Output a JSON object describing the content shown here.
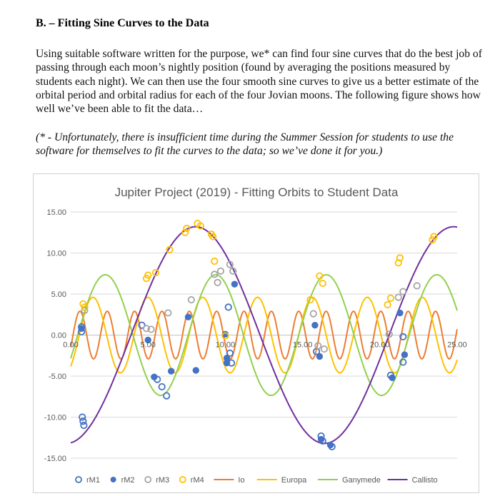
{
  "document": {
    "heading": "B. – Fitting Sine Curves to the Data",
    "paragraph": "Using suitable software written for the purpose, we* can find four sine curves that do the best job of passing through each moon’s nightly position (found by averaging the positions measured by students each night). We can then use the four smooth sine curves to give us a better estimate of the orbital period and orbital radius for each of the four Jovian moons. The following figure shows how well we’ve been able to fit the data…",
    "footnote": "(* - Unfortunately, there is insufficient time during the Summer Session for students to use the software for themselves to fit the curves to the data; so we’ve done it for you.)"
  },
  "chart_data": {
    "type": "scatter",
    "title": "Jupiter Project (2019) - Fitting Orbits to Student Data",
    "xlim": [
      0,
      25
    ],
    "ylim": [
      -15,
      15
    ],
    "x_ticks": [
      "0.00",
      "5.00",
      "10.00",
      "15.00",
      "20.00",
      "25.00"
    ],
    "y_ticks": [
      "15.00",
      "10.00",
      "5.00",
      "0.00",
      "-5.00",
      "-10.00",
      "-15.00"
    ],
    "grid": "horizontal",
    "legend": "bottom",
    "curves": [
      {
        "name": "Io",
        "color": "#ed7d31",
        "amplitude": 2.9,
        "period": 1.77,
        "phase_zero_x": 0.15
      },
      {
        "name": "Europa",
        "color": "#ffc000",
        "amplitude": 4.6,
        "period": 3.55,
        "phase_zero_x": 0.55
      },
      {
        "name": "Ganymede",
        "color": "#92d050",
        "amplitude": 7.35,
        "period": 7.15,
        "phase_zero_x": 0.45
      },
      {
        "name": "Callisto",
        "color": "#7030a0",
        "amplitude": 13.2,
        "period": 16.7,
        "phase_zero_x": 3.9
      }
    ],
    "series": [
      {
        "name": "rM1",
        "style": "open",
        "color": "#4472c4",
        "points": [
          [
            0.7,
            1.0
          ],
          [
            0.7,
            0.4
          ],
          [
            0.75,
            -10.0
          ],
          [
            0.8,
            -10.5
          ],
          [
            0.85,
            -11.0
          ],
          [
            4.6,
            1.2
          ],
          [
            5.6,
            -5.4
          ],
          [
            5.9,
            -6.3
          ],
          [
            6.2,
            -7.4
          ],
          [
            10.2,
            3.4
          ],
          [
            10.3,
            -2.2
          ],
          [
            10.4,
            -3.4
          ],
          [
            15.9,
            -2.0
          ],
          [
            16.2,
            -12.3
          ],
          [
            16.3,
            -12.9
          ],
          [
            16.9,
            -13.6
          ],
          [
            20.7,
            -4.9
          ],
          [
            21.5,
            -0.2
          ],
          [
            21.5,
            -3.3
          ]
        ]
      },
      {
        "name": "rM2",
        "style": "filled",
        "color": "#4472c4",
        "points": [
          [
            0.7,
            0.8
          ],
          [
            5.4,
            -5.1
          ],
          [
            5.0,
            -0.6
          ],
          [
            6.5,
            -4.4
          ],
          [
            7.6,
            2.2
          ],
          [
            8.1,
            -4.3
          ],
          [
            10.0,
            0.1
          ],
          [
            10.1,
            -2.8
          ],
          [
            10.1,
            -3.4
          ],
          [
            10.6,
            6.2
          ],
          [
            15.8,
            1.2
          ],
          [
            16.1,
            -2.6
          ],
          [
            16.2,
            -12.7
          ],
          [
            16.8,
            -13.4
          ],
          [
            20.8,
            -5.2
          ],
          [
            21.3,
            2.7
          ],
          [
            21.6,
            -2.4
          ]
        ]
      },
      {
        "name": "rM3",
        "style": "open",
        "color": "#a5a5a5",
        "points": [
          [
            0.9,
            3.0
          ],
          [
            4.9,
            0.8
          ],
          [
            5.2,
            0.7
          ],
          [
            6.3,
            2.7
          ],
          [
            7.8,
            4.3
          ],
          [
            9.3,
            7.4
          ],
          [
            9.5,
            6.4
          ],
          [
            9.7,
            7.8
          ],
          [
            10.3,
            8.6
          ],
          [
            10.5,
            7.8
          ],
          [
            15.7,
            2.6
          ],
          [
            16.0,
            -1.3
          ],
          [
            16.4,
            -1.7
          ],
          [
            20.6,
            0.1
          ],
          [
            21.2,
            4.6
          ],
          [
            21.5,
            5.3
          ],
          [
            22.4,
            6.0
          ]
        ]
      },
      {
        "name": "rM4",
        "style": "open",
        "color": "#ffc000",
        "points": [
          [
            0.8,
            3.8
          ],
          [
            0.9,
            3.4
          ],
          [
            4.9,
            6.9
          ],
          [
            5.0,
            7.3
          ],
          [
            5.5,
            7.6
          ],
          [
            6.4,
            10.4
          ],
          [
            7.4,
            12.5
          ],
          [
            7.5,
            13.0
          ],
          [
            8.2,
            13.6
          ],
          [
            8.4,
            13.3
          ],
          [
            9.1,
            12.3
          ],
          [
            9.2,
            12.0
          ],
          [
            9.3,
            9.0
          ],
          [
            10.0,
            -0.1
          ],
          [
            15.5,
            4.3
          ],
          [
            16.1,
            7.2
          ],
          [
            16.3,
            6.3
          ],
          [
            20.5,
            3.7
          ],
          [
            20.7,
            4.5
          ],
          [
            21.2,
            8.8
          ],
          [
            21.3,
            9.4
          ],
          [
            23.4,
            11.6
          ],
          [
            23.5,
            12.0
          ]
        ]
      }
    ],
    "legend_entries": [
      {
        "label": "rM1",
        "kind": "open-marker",
        "color": "#4472c4"
      },
      {
        "label": "rM2",
        "kind": "filled-marker",
        "color": "#4472c4"
      },
      {
        "label": "rM3",
        "kind": "open-marker",
        "color": "#a5a5a5"
      },
      {
        "label": "rM4",
        "kind": "open-marker",
        "color": "#ffc000"
      },
      {
        "label": "Io",
        "kind": "line",
        "color": "#ed7d31"
      },
      {
        "label": "Europa",
        "kind": "line",
        "color": "#ffc000"
      },
      {
        "label": "Ganymede",
        "kind": "line",
        "color": "#92d050"
      },
      {
        "label": "Callisto",
        "kind": "line",
        "color": "#7030a0"
      }
    ]
  }
}
